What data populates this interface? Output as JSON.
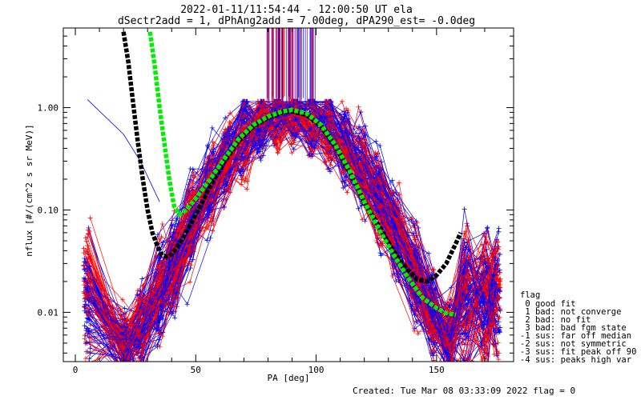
{
  "chart_data": {
    "type": "line",
    "title": "2022-01-11/11:54:44 - 12:00:50 UT ela",
    "subtitle": "dSectr2add = 1, dPhAng2add = 7.00deg, dPA290_est=  -0.0deg",
    "xlabel": "PA [deg]",
    "ylabel": "nflux [#/(cm^2 s sr MeV)]",
    "xlim": [
      -5,
      182
    ],
    "ylim": [
      0.0033,
      6.0
    ],
    "yscale": "log",
    "grid": false,
    "xticks": [
      {
        "v": 0,
        "label": "0"
      },
      {
        "v": 50,
        "label": "50"
      },
      {
        "v": 100,
        "label": "100"
      },
      {
        "v": 150,
        "label": "150"
      }
    ],
    "yticks": [
      {
        "v": 0.01,
        "label": "0.01"
      },
      {
        "v": 0.1,
        "label": "0.10"
      },
      {
        "v": 1.0,
        "label": "1.00"
      }
    ],
    "colors": {
      "red": "#ff0000",
      "blue": "#0000ff",
      "black": "#000000",
      "green": "#00ee00"
    },
    "series": [
      {
        "color": "#000000",
        "style": "thick-dash",
        "x": [
          20,
          22,
          24,
          26,
          28,
          30,
          32,
          34,
          36,
          38,
          40,
          44,
          50,
          56,
          62,
          68,
          74,
          80,
          86,
          90,
          96,
          102,
          108,
          114,
          120,
          126,
          132,
          138,
          142,
          146,
          150,
          154,
          158,
          160
        ],
        "y": [
          5.5,
          2.8,
          1.1,
          0.45,
          0.2,
          0.1,
          0.06,
          0.045,
          0.036,
          0.035,
          0.037,
          0.05,
          0.09,
          0.17,
          0.3,
          0.48,
          0.66,
          0.8,
          0.9,
          0.92,
          0.85,
          0.66,
          0.42,
          0.23,
          0.12,
          0.07,
          0.04,
          0.026,
          0.021,
          0.02,
          0.023,
          0.03,
          0.047,
          0.06
        ]
      },
      {
        "color": "#00ee00",
        "style": "thick-dash",
        "x": [
          31,
          33,
          35,
          37,
          39,
          41,
          43,
          46,
          50,
          56,
          62,
          68,
          74,
          80,
          86,
          90,
          96,
          102,
          108,
          114,
          120,
          126,
          132,
          138,
          144,
          150,
          154,
          158
        ],
        "y": [
          5.5,
          2.5,
          1.0,
          0.45,
          0.2,
          0.11,
          0.09,
          0.1,
          0.13,
          0.2,
          0.32,
          0.5,
          0.68,
          0.82,
          0.92,
          0.95,
          0.88,
          0.68,
          0.43,
          0.24,
          0.12,
          0.065,
          0.037,
          0.022,
          0.014,
          0.011,
          0.0098,
          0.0095
        ]
      }
    ]
  },
  "legend": {
    "title": "flag",
    "items": [
      " 0 good fit",
      " 1 bad: not converge",
      " 2 bad: no fit",
      " 3 bad: bad fgm state",
      "-1 sus: far off median",
      "-2 sus: not symmetric",
      "-3 sus: fit peak off 90",
      "-4 sus: peaks high var"
    ]
  },
  "footer": "Created: Tue Mar 08 03:33:09 2022   flag = 0"
}
